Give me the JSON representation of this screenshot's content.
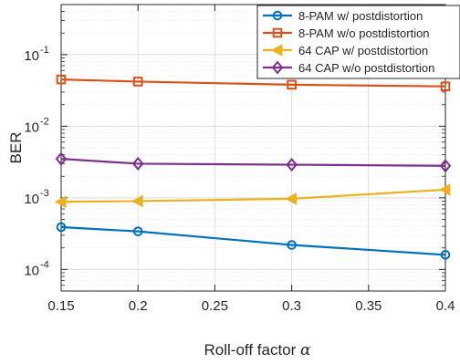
{
  "chart_data": {
    "type": "line",
    "title": "",
    "xlabel": "Roll-off factor",
    "xlabel_symbol": "α",
    "ylabel": "BER",
    "xlim": [
      0.15,
      0.4
    ],
    "ylim": [
      5e-05,
      0.5
    ],
    "yscale": "log",
    "grid": true,
    "legend_position": "top-right",
    "x_ticks": [
      "0.15",
      "0.2",
      "0.25",
      "0.3",
      "0.35",
      "0.4"
    ],
    "x_tick_values": [
      0.15,
      0.2,
      0.25,
      0.3,
      0.35,
      0.4
    ],
    "y_ticks": [
      {
        "value": 0.0001,
        "base": "10",
        "exp": "-4"
      },
      {
        "value": 0.001,
        "base": "10",
        "exp": "-3"
      },
      {
        "value": 0.01,
        "base": "10",
        "exp": "-2"
      },
      {
        "value": 0.1,
        "base": "10",
        "exp": "-1"
      }
    ],
    "x": [
      0.15,
      0.2,
      0.3,
      0.4
    ],
    "series": [
      {
        "name": "8-PAM w/ postdistortion",
        "color": "#0072BD",
        "marker": "circle",
        "values": [
          0.00039,
          0.00034,
          0.00022,
          0.00016
        ]
      },
      {
        "name": "8-PAM w/o postdistortion",
        "color": "#D95319",
        "marker": "square",
        "values": [
          0.045,
          0.042,
          0.038,
          0.036
        ]
      },
      {
        "name": "64 CAP w/ postdistortion",
        "color": "#EDB120",
        "marker": "triangle-left",
        "values": [
          0.00088,
          0.0009,
          0.00097,
          0.0013
        ]
      },
      {
        "name": "64 CAP w/o postdistortion",
        "color": "#7E2F8E",
        "marker": "diamond",
        "values": [
          0.0035,
          0.003,
          0.0029,
          0.0028
        ]
      }
    ]
  }
}
